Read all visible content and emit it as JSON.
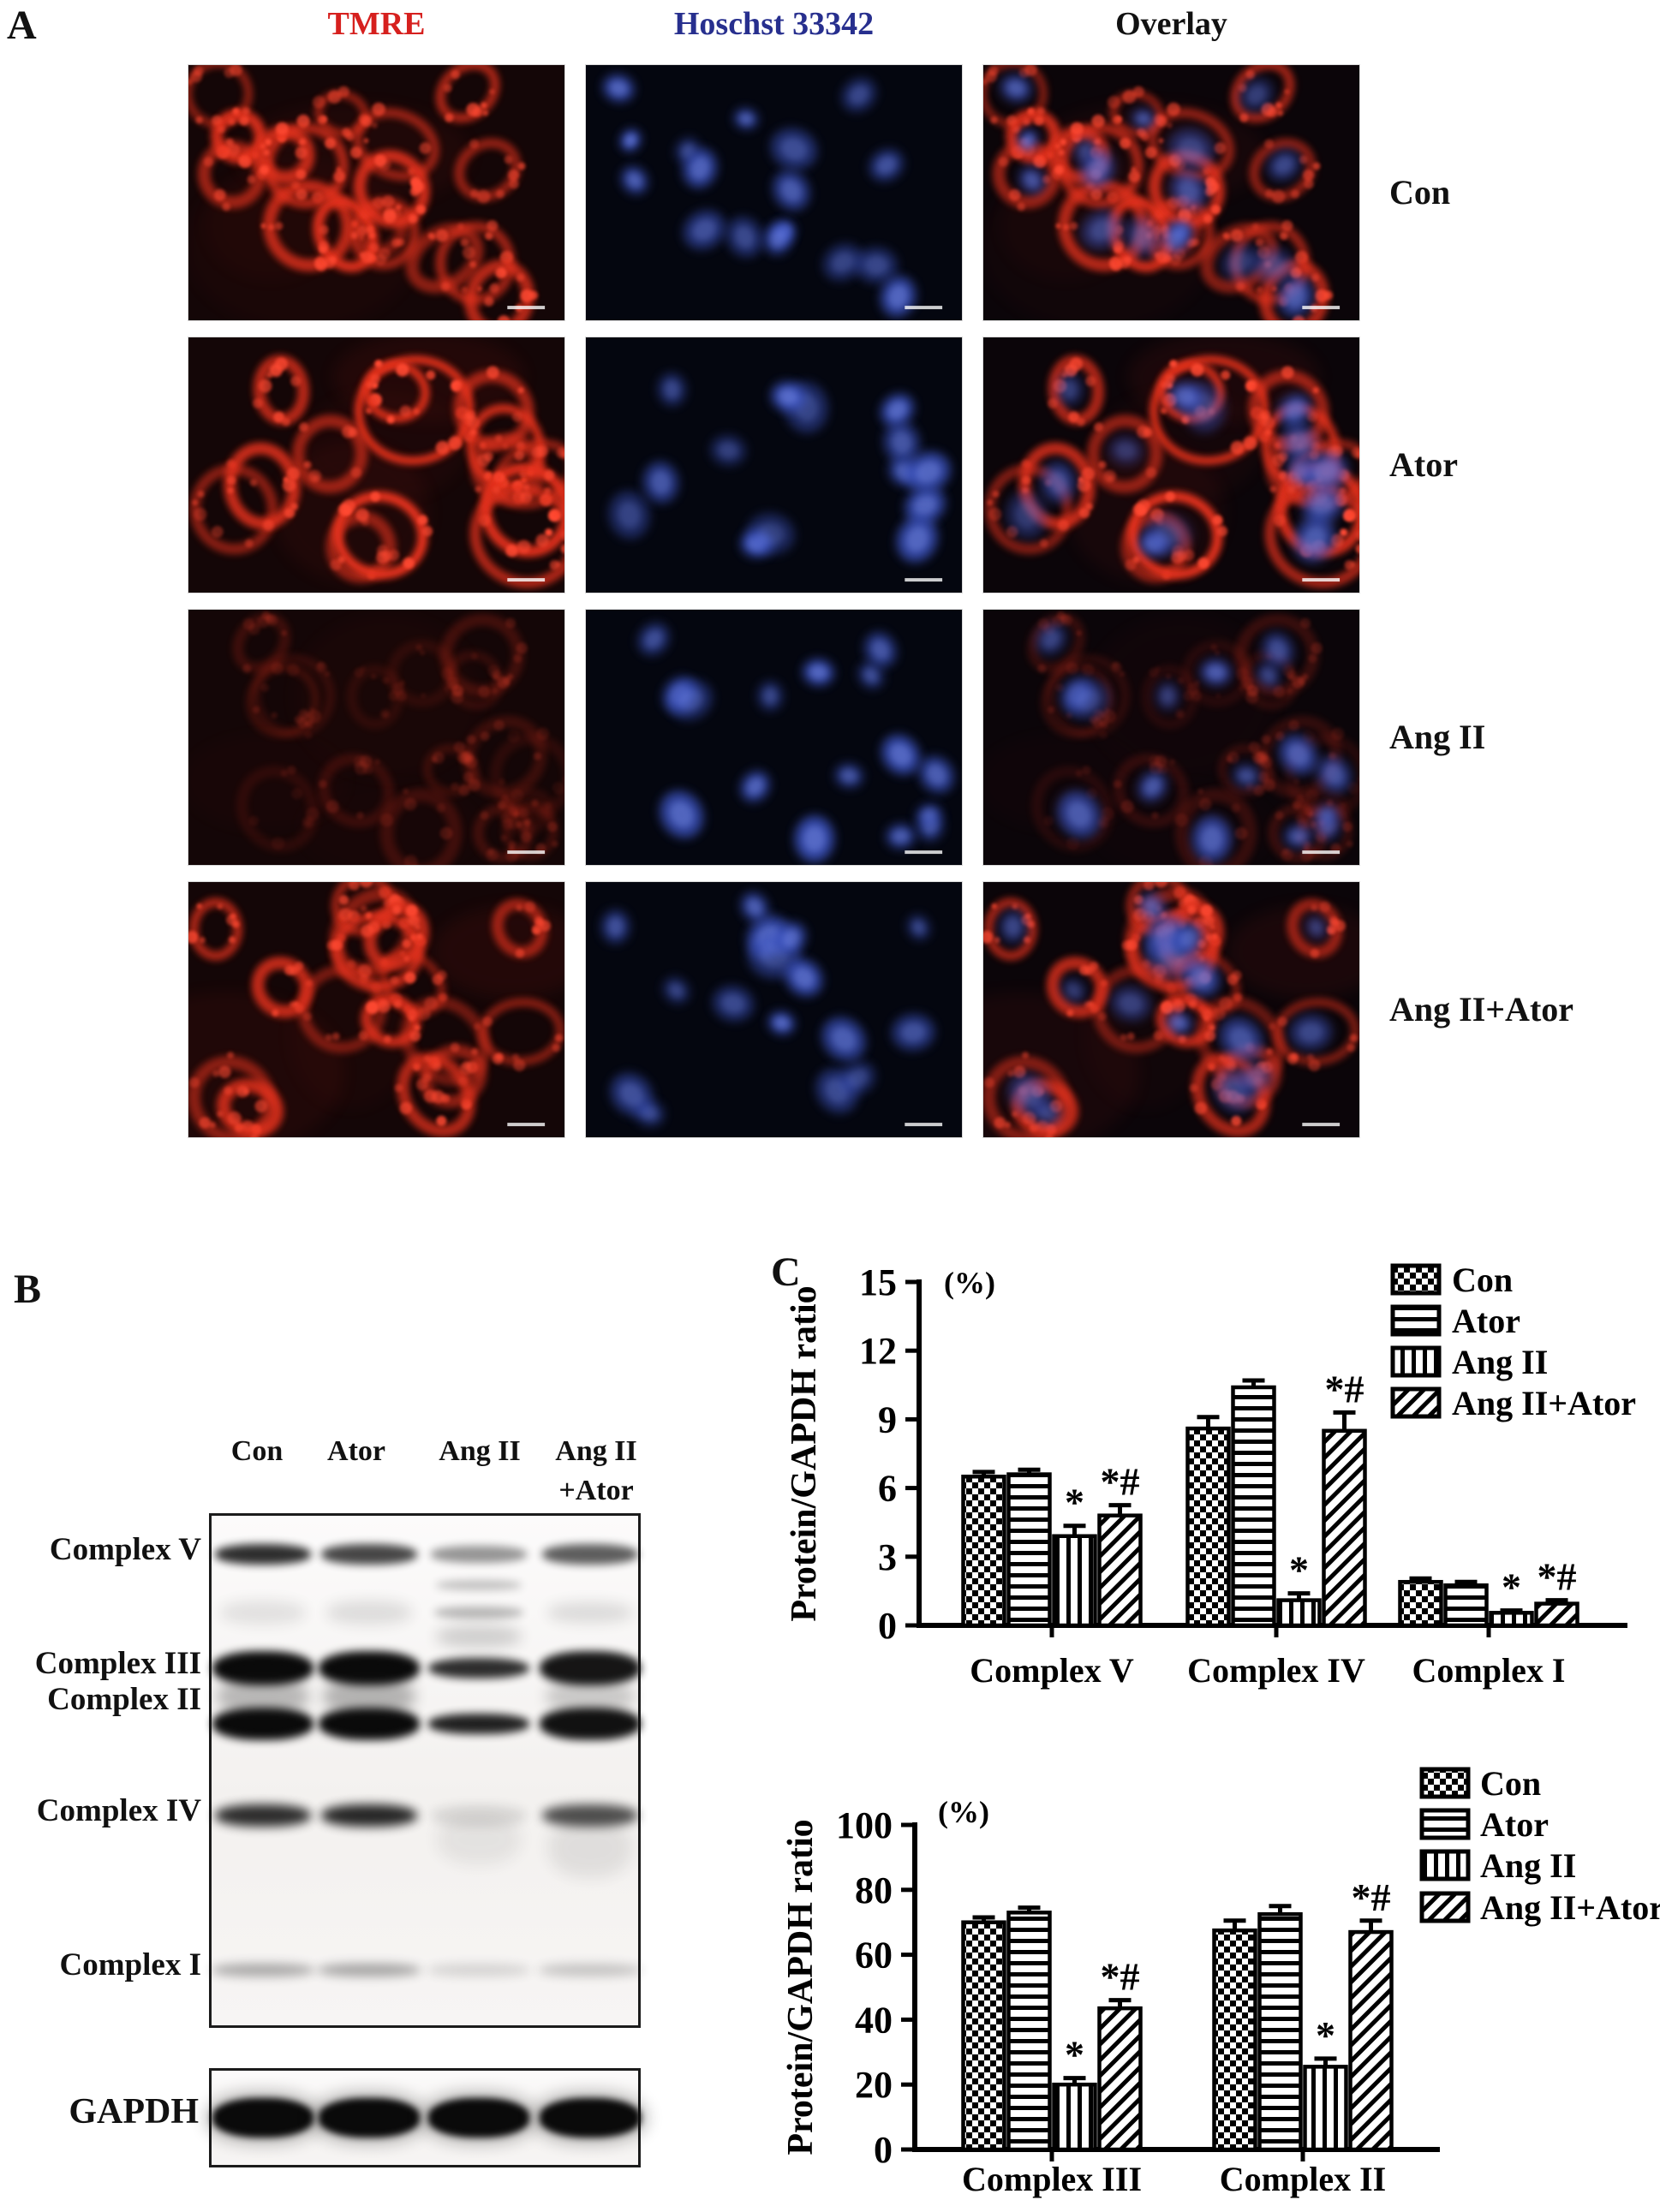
{
  "figure": {
    "panel_a": {
      "label": "A",
      "columns": [
        {
          "id": "tmre",
          "label": "TMRE",
          "color": "#d6201e"
        },
        {
          "id": "hoechst",
          "label": "Hoschst 33342",
          "color": "#272f8e"
        },
        {
          "id": "overlay",
          "label": "Overlay",
          "color": "#111111"
        }
      ],
      "rows": [
        {
          "label": "Con",
          "red": 1.0,
          "blue": 0.95,
          "cells": 17,
          "scale": 1.0
        },
        {
          "label": "Ator",
          "red": 1.05,
          "blue": 0.9,
          "cells": 14,
          "scale": 1.25
        },
        {
          "label": "Ang II",
          "red": 0.22,
          "blue": 0.95,
          "cells": 16,
          "scale": 1.0
        },
        {
          "label": "Ang II+Ator",
          "red": 0.85,
          "blue": 0.92,
          "cells": 16,
          "scale": 1.05
        }
      ]
    },
    "panel_b": {
      "label": "B",
      "lane_headers": [
        "Con",
        "Ator",
        "Ang II",
        "Ang II"
      ],
      "lane_header_second_line": "+Ator",
      "band_rows": [
        {
          "label": "Complex V",
          "intensities": [
            0.85,
            0.75,
            0.42,
            0.65
          ]
        },
        {
          "label": "Complex III",
          "intensities": [
            1.0,
            1.0,
            0.85,
            0.95
          ]
        },
        {
          "label": "Complex II",
          "intensities": [
            1.0,
            1.0,
            0.9,
            0.97
          ]
        },
        {
          "label": "Complex IV",
          "intensities": [
            0.85,
            0.88,
            0.1,
            0.7
          ]
        },
        {
          "label": "Complex I",
          "intensities": [
            0.38,
            0.4,
            0.16,
            0.24
          ]
        }
      ],
      "gapdh": {
        "label": "GAPDH",
        "intensities": [
          1,
          1,
          1,
          1
        ]
      }
    },
    "panel_c": {
      "label": "C"
    }
  },
  "chart_data": [
    {
      "type": "bar",
      "title": "",
      "xlabel": "",
      "ylabel": "Protein/GAPDH ratio",
      "unit_label": "(%)",
      "ylim": [
        0,
        15
      ],
      "yticks": [
        0,
        3,
        6,
        9,
        12,
        15
      ],
      "grid": false,
      "legend_position": "top-right",
      "categories": [
        "Complex V",
        "Complex IV",
        "Complex I"
      ],
      "series": [
        {
          "name": "Con",
          "pattern": "checker",
          "values": [
            6.5,
            8.6,
            1.9
          ],
          "errors": [
            0.2,
            0.5,
            0.15
          ]
        },
        {
          "name": "Ator",
          "pattern": "hlines",
          "values": [
            6.6,
            10.4,
            1.75
          ],
          "errors": [
            0.2,
            0.3,
            0.15
          ]
        },
        {
          "name": "Ang II",
          "pattern": "vlines",
          "values": [
            3.9,
            1.1,
            0.55
          ],
          "errors": [
            0.45,
            0.3,
            0.1
          ],
          "annotation": "*"
        },
        {
          "name": "Ang II+Ator",
          "pattern": "diag",
          "values": [
            4.8,
            8.5,
            0.95
          ],
          "errors": [
            0.45,
            0.8,
            0.15
          ],
          "annotation": "*#"
        }
      ]
    },
    {
      "type": "bar",
      "title": "",
      "xlabel": "",
      "ylabel": "Protein/GAPDH ratio",
      "unit_label": "(%)",
      "ylim": [
        0,
        100
      ],
      "yticks": [
        0,
        20,
        40,
        60,
        80,
        100
      ],
      "grid": false,
      "legend_position": "top-right",
      "categories": [
        "Complex III",
        "Complex II"
      ],
      "series": [
        {
          "name": "Con",
          "pattern": "checker",
          "values": [
            70,
            67.5
          ],
          "errors": [
            1.5,
            3
          ]
        },
        {
          "name": "Ator",
          "pattern": "hlines",
          "values": [
            73,
            72.5
          ],
          "errors": [
            1.5,
            2.5
          ]
        },
        {
          "name": "Ang II",
          "pattern": "vlines",
          "values": [
            20,
            25.5
          ],
          "errors": [
            2,
            2.5
          ],
          "annotation": "*"
        },
        {
          "name": "Ang II+Ator",
          "pattern": "diag",
          "values": [
            43.5,
            67
          ],
          "errors": [
            2.5,
            3.5
          ],
          "annotation": "*#"
        }
      ]
    }
  ]
}
